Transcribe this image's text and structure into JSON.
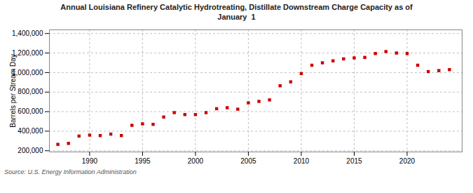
{
  "chart_data": {
    "type": "scatter",
    "title": "Annual Louisiana Refinery Catalytic Hydrotreating, Distillate Downstream Charge Capacity as of\nJanuary  1",
    "ylabel": "Barrels per Stream Day",
    "source": "Source: U.S. Energy Information Administration",
    "x": [
      1987,
      1988,
      1989,
      1990,
      1991,
      1992,
      1993,
      1994,
      1995,
      1996,
      1997,
      1998,
      1999,
      2000,
      2001,
      2002,
      2003,
      2004,
      2005,
      2006,
      2007,
      2008,
      2009,
      2010,
      2011,
      2012,
      2013,
      2014,
      2015,
      2016,
      2017,
      2018,
      2019,
      2020,
      2021,
      2022,
      2023,
      2024
    ],
    "values": [
      265000,
      275000,
      350000,
      360000,
      355000,
      370000,
      355000,
      460000,
      475000,
      470000,
      545000,
      590000,
      570000,
      570000,
      590000,
      630000,
      640000,
      625000,
      690000,
      705000,
      720000,
      865000,
      905000,
      990000,
      1075000,
      1100000,
      1120000,
      1140000,
      1150000,
      1155000,
      1195000,
      1215000,
      1200000,
      1195000,
      1075000,
      1010000,
      1020000,
      1030000
    ],
    "color": "#cc0000",
    "marker": "square",
    "xlim": [
      1986.2,
      2025.2
    ],
    "xticks": [
      1990,
      1995,
      2000,
      2005,
      2010,
      2015,
      2020
    ],
    "ylim": [
      187500,
      1437500
    ],
    "yticks": [
      {
        "value": 200000,
        "label": "200,000"
      },
      {
        "value": 400000,
        "label": "400,000"
      },
      {
        "value": 600000,
        "label": "600,000"
      },
      {
        "value": 800000,
        "label": "800,000"
      },
      {
        "value": 1000000,
        "label": "1,000,000"
      },
      {
        "value": 1200000,
        "label": "1,200,000"
      },
      {
        "value": 1400000,
        "label": "1,400,000"
      }
    ],
    "grid": true
  }
}
